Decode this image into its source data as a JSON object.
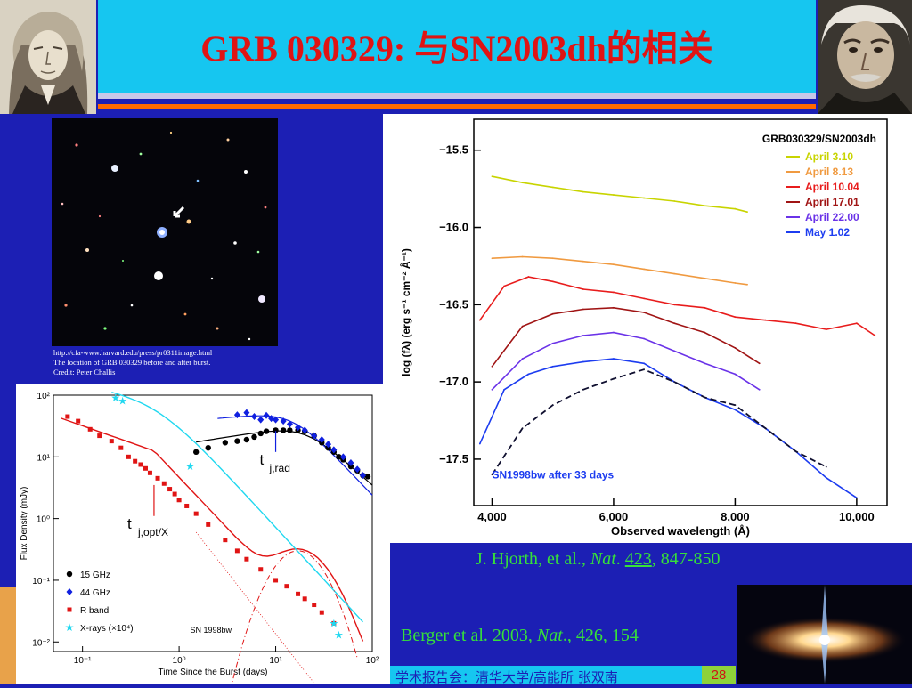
{
  "slide": {
    "title": "GRB 030329: 与SN2003dh的相关",
    "page_number": "28",
    "footer_text": "学术报告会：清华大学/高能所 张双南"
  },
  "image_credit": {
    "url": "http://cfa-www.harvard.edu/press/pr0311image.html",
    "caption": "The location of GRB 030329 before and after burst.",
    "credit": "Credit: Peter Challis"
  },
  "references": {
    "hjorth": {
      "authors": "J. Hjorth, et al., ",
      "journal": "Nat",
      "sep": ". ",
      "volume": "423",
      "pages": ", 847-850"
    },
    "berger": {
      "authors": "Berger et al. 2003, ",
      "journal": "Nat",
      "rest": "., 426, 154"
    }
  },
  "colors": {
    "background": "#1c1fb4",
    "title_box": "#16c6f0",
    "title_text": "#e01414",
    "reference_text": "#36e03a"
  },
  "chart_data": [
    {
      "type": "line",
      "title": "GRB030329/SN2003dh",
      "xlabel": "Observed wavelength (Å)",
      "ylabel": "log (fλ) (erg s⁻¹ cm⁻² Å⁻¹)",
      "xlim": [
        3700,
        10500
      ],
      "ylim": [
        -17.8,
        -15.3
      ],
      "xticks": [
        4000,
        6000,
        8000,
        10000
      ],
      "xtick_labels": [
        "4,000",
        "6,000",
        "8,000",
        "10,000"
      ],
      "yticks": [
        -15.5,
        -16.0,
        -16.5,
        -17.0,
        -17.5
      ],
      "ytick_labels": [
        "−15.5",
        "−16.0",
        "−16.5",
        "−17.0",
        "−17.5"
      ],
      "legend_position": "top-right",
      "annotation": "SN1998bw after 33 days",
      "series": [
        {
          "name": "April 3.10",
          "color": "#c8d400",
          "x": [
            4000,
            4500,
            5000,
            5500,
            6000,
            6500,
            7000,
            7500,
            8000,
            8200
          ],
          "y": [
            -15.67,
            -15.71,
            -15.74,
            -15.77,
            -15.79,
            -15.81,
            -15.83,
            -15.86,
            -15.88,
            -15.9
          ]
        },
        {
          "name": "April 8.13",
          "color": "#f09a40",
          "x": [
            4000,
            4500,
            5000,
            5500,
            6000,
            6500,
            7000,
            7500,
            8000,
            8200
          ],
          "y": [
            -16.2,
            -16.19,
            -16.2,
            -16.22,
            -16.24,
            -16.27,
            -16.3,
            -16.33,
            -16.36,
            -16.37
          ]
        },
        {
          "name": "April 10.04",
          "color": "#e81c1c",
          "x": [
            3800,
            4200,
            4600,
            5000,
            5500,
            6000,
            6500,
            7000,
            7500,
            8000,
            8500,
            9000,
            9500,
            10000,
            10300
          ],
          "y": [
            -16.6,
            -16.38,
            -16.32,
            -16.35,
            -16.4,
            -16.42,
            -16.46,
            -16.5,
            -16.52,
            -16.58,
            -16.6,
            -16.62,
            -16.66,
            -16.62,
            -16.7
          ]
        },
        {
          "name": "April 17.01",
          "color": "#a01414",
          "x": [
            4000,
            4500,
            5000,
            5500,
            6000,
            6500,
            7000,
            7500,
            8000,
            8400
          ],
          "y": [
            -16.9,
            -16.64,
            -16.56,
            -16.53,
            -16.52,
            -16.55,
            -16.62,
            -16.68,
            -16.78,
            -16.88
          ]
        },
        {
          "name": "April 22.00",
          "color": "#6a32e8",
          "x": [
            4000,
            4500,
            5000,
            5500,
            6000,
            6500,
            7000,
            7500,
            8000,
            8400
          ],
          "y": [
            -17.05,
            -16.85,
            -16.75,
            -16.7,
            -16.68,
            -16.72,
            -16.8,
            -16.88,
            -16.95,
            -17.05
          ]
        },
        {
          "name": "May 1.02",
          "color": "#1c3cf0",
          "x": [
            3800,
            4200,
            4600,
            5000,
            5500,
            6000,
            6500,
            7000,
            7500,
            8000,
            8500,
            9000,
            9500,
            10000
          ],
          "y": [
            -17.4,
            -17.05,
            -16.95,
            -16.9,
            -16.87,
            -16.85,
            -16.88,
            -17.0,
            -17.1,
            -17.18,
            -17.3,
            -17.45,
            -17.62,
            -17.75
          ]
        },
        {
          "name": "SN1998bw",
          "color": "#101030",
          "x": [
            4000,
            4500,
            5000,
            5500,
            6000,
            6500,
            7000,
            7500,
            8000,
            8500,
            9000,
            9500
          ],
          "y": [
            -17.6,
            -17.3,
            -17.15,
            -17.05,
            -16.98,
            -16.92,
            -17.0,
            -17.1,
            -17.15,
            -17.3,
            -17.45,
            -17.55
          ]
        }
      ]
    },
    {
      "type": "scatter",
      "title": "",
      "xlabel": "Time Since the Burst  (days)",
      "ylabel": "Flux Density  (mJy)",
      "x_scale": "log",
      "y_scale": "log",
      "xlim": [
        0.05,
        100
      ],
      "ylim": [
        0.007,
        100
      ],
      "xticks": [
        0.1,
        1,
        10,
        100
      ],
      "xtick_labels": [
        "10⁻¹",
        "10⁰",
        "10¹",
        "10²"
      ],
      "yticks": [
        0.01,
        0.1,
        1,
        10,
        100
      ],
      "ytick_labels": [
        "10⁻²",
        "10⁻¹",
        "10⁰",
        "10¹",
        "10²"
      ],
      "legend_position": "bottom-left",
      "legend": [
        "15 GHz",
        "44 GHz",
        "R band",
        "X-rays (×10⁴)"
      ],
      "annotations": [
        "t",
        "j,rad",
        "t",
        "j,opt/X",
        "SN 1998bw"
      ],
      "series": [
        {
          "name": "15 GHz",
          "color": "#000000",
          "x": [
            1.5,
            2,
            3,
            4,
            5,
            6,
            7,
            8,
            10,
            12,
            14,
            17,
            20,
            25,
            30,
            35,
            40,
            45,
            50,
            60,
            70,
            80,
            90
          ],
          "y": [
            12,
            14,
            17,
            18,
            19,
            21,
            24,
            26,
            27,
            27,
            27,
            27,
            26,
            22,
            17,
            14,
            12,
            10,
            9,
            7,
            6,
            5,
            4.8
          ]
        },
        {
          "name": "44 GHz",
          "color": "#1020e0",
          "x": [
            4,
            5,
            6,
            7,
            8,
            9,
            10,
            12,
            14,
            17,
            20,
            25,
            30,
            35,
            40,
            50,
            60,
            70,
            80
          ],
          "y": [
            48,
            52,
            45,
            40,
            47,
            42,
            40,
            38,
            34,
            30,
            27,
            22,
            19,
            16,
            13,
            10,
            8,
            6.3,
            5
          ]
        },
        {
          "name": "R band",
          "color": "#e01414",
          "x": [
            0.07,
            0.09,
            0.12,
            0.15,
            0.2,
            0.25,
            0.3,
            0.35,
            0.4,
            0.45,
            0.5,
            0.6,
            0.7,
            0.8,
            0.9,
            1.0,
            1.2,
            1.5,
            2,
            3,
            4,
            5,
            7,
            10,
            13,
            17,
            20,
            25,
            30,
            40
          ],
          "y": [
            45,
            38,
            28,
            22,
            18,
            14,
            10,
            8.5,
            7.5,
            6.5,
            5.5,
            4.5,
            3.7,
            3.0,
            2.5,
            2.0,
            1.6,
            1.2,
            0.8,
            0.45,
            0.3,
            0.22,
            0.15,
            0.1,
            0.08,
            0.06,
            0.05,
            0.04,
            0.03,
            0.02
          ]
        },
        {
          "name": "X-rays (×10⁴)",
          "color": "#20d8f0",
          "x": [
            0.22,
            0.26,
            1.3,
            40,
            45
          ],
          "y": [
            90,
            80,
            7,
            0.02,
            0.013
          ]
        }
      ]
    }
  ]
}
